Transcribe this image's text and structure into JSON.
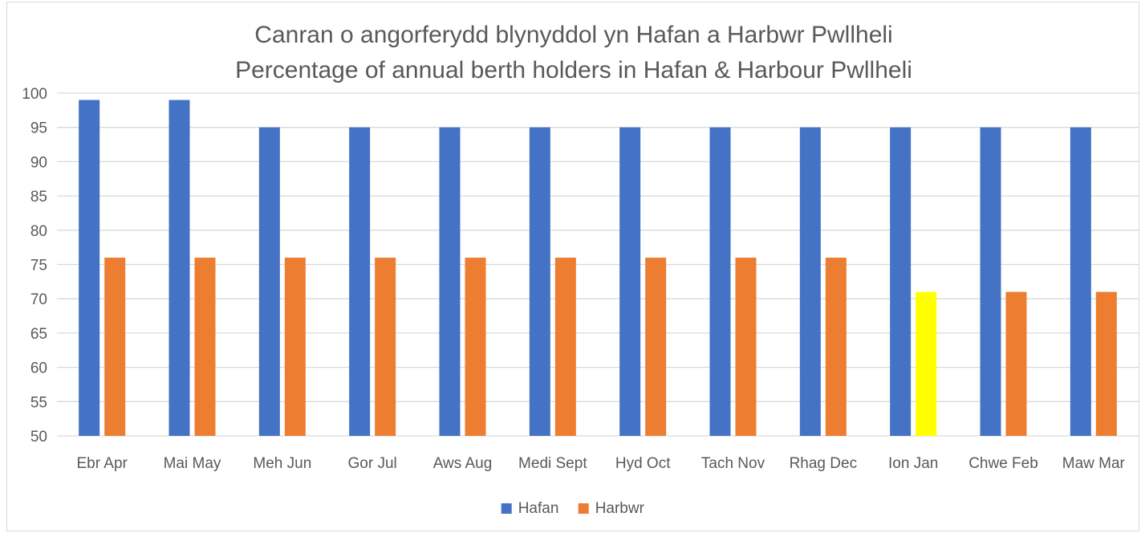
{
  "chart_data": {
    "type": "bar",
    "title_lines": [
      "Canran o angorferydd blynyddol yn Hafan a Harbwr Pwllheli",
      "Percentage of annual berth holders in Hafan & Harbour Pwllheli"
    ],
    "categories": [
      "Ebr Apr",
      "Mai May",
      "Meh Jun",
      "Gor Jul",
      "Aws Aug",
      "Medi Sept",
      "Hyd Oct",
      "Tach Nov",
      "Rhag Dec",
      "Ion Jan",
      "Chwe Feb",
      "Maw Mar"
    ],
    "series": [
      {
        "name": "Hafan",
        "color": "#4472c4",
        "values": [
          99,
          99,
          95,
          95,
          95,
          95,
          95,
          95,
          95,
          95,
          95,
          95
        ]
      },
      {
        "name": "Harbwr",
        "color": "#ed7d31",
        "values": [
          76,
          76,
          76,
          76,
          76,
          76,
          76,
          76,
          76,
          71,
          71,
          71
        ]
      }
    ],
    "highlighted_point": {
      "series": "Harbwr",
      "category": "Ion Jan",
      "color": "#ffff00"
    },
    "xlabel": "",
    "ylabel": "",
    "ylim": [
      50,
      100
    ],
    "ytick_step": 5,
    "grid": true,
    "legend_position": "bottom"
  }
}
